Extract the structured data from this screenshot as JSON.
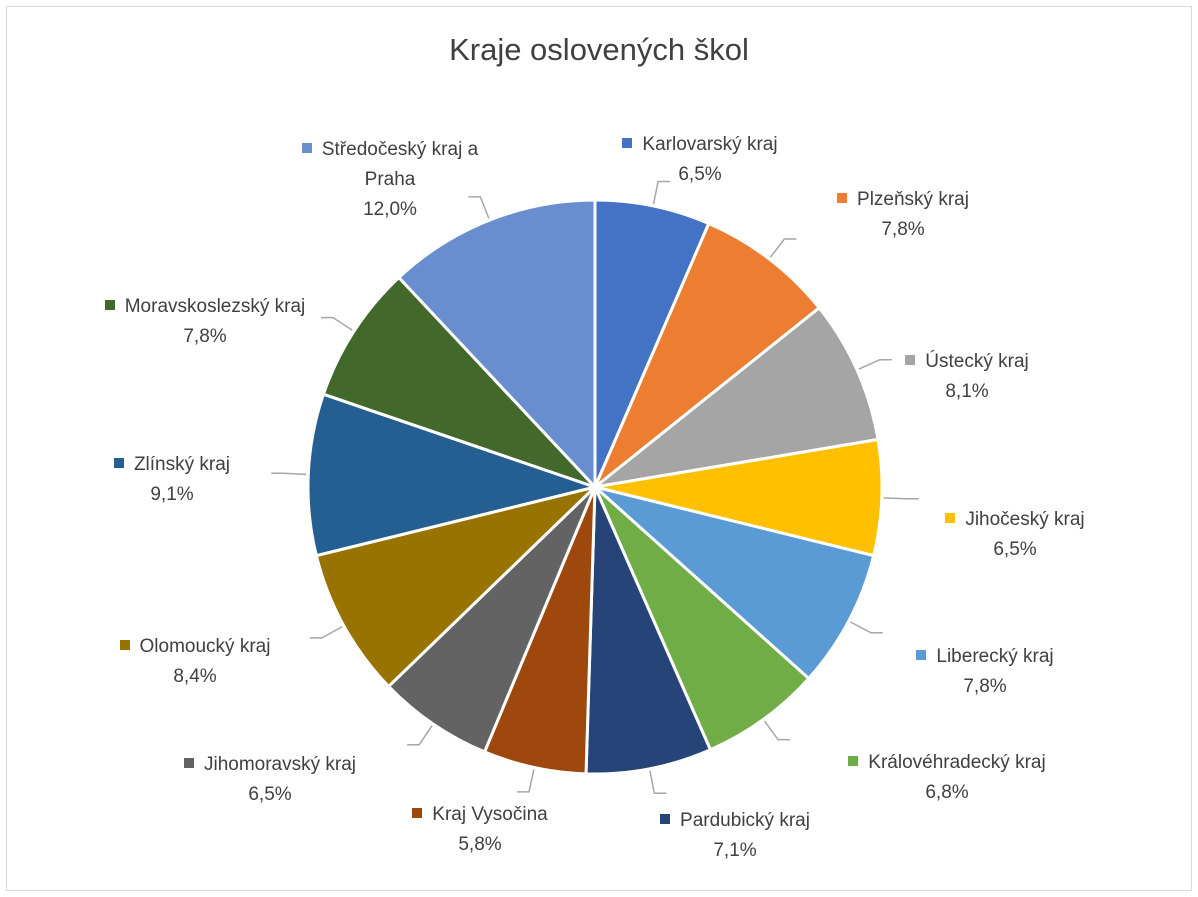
{
  "chart_data": {
    "type": "pie",
    "title": "Kraje oslovených škol",
    "categories": [
      "Karlovarský kraj",
      "Plzeňský kraj",
      "Ústecký kraj",
      "Jihočeský kraj",
      "Liberecký kraj",
      "Královéhradecký kraj",
      "Pardubický kraj",
      "Kraj Vysočina",
      "Jihomoravský kraj",
      "Olomoucký kraj",
      "Zlínský kraj",
      "Moravskoslezský kraj",
      "Středočeský kraj a Praha"
    ],
    "values": [
      6.5,
      7.8,
      8.1,
      6.5,
      7.8,
      6.8,
      7.1,
      5.8,
      6.5,
      8.4,
      9.1,
      7.8,
      12.0
    ],
    "value_labels": [
      "6,5%",
      "7,8%",
      "8,1%",
      "6,5%",
      "7,8%",
      "6,8%",
      "7,1%",
      "5,8%",
      "6,5%",
      "8,4%",
      "9,1%",
      "7,8%",
      "12,0%"
    ],
    "colors": [
      "#4472c4",
      "#ed7d31",
      "#a5a5a5",
      "#ffc000",
      "#5b9bd5",
      "#70ad47",
      "#264478",
      "#9e480e",
      "#636363",
      "#997300",
      "#255e91",
      "#43682b",
      "#698ed0"
    ]
  }
}
